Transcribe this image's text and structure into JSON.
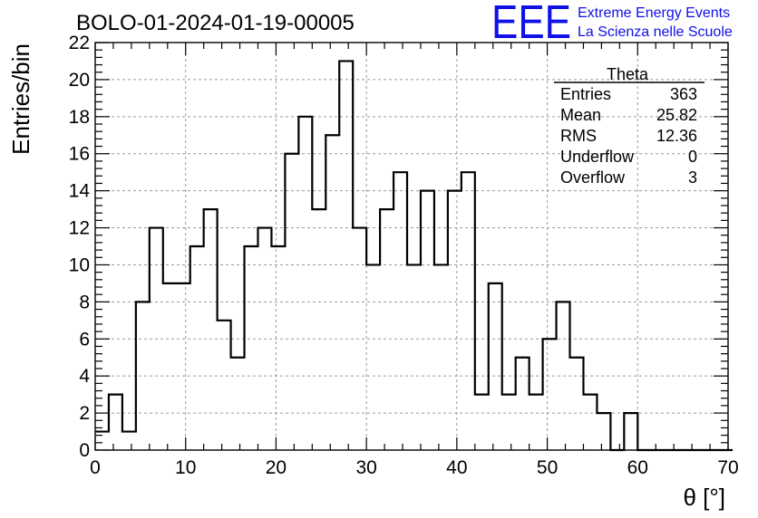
{
  "brand": {
    "logo_text": "EEE",
    "line1": "Extreme Energy Events",
    "line2": "La Scienza nelle Scuole",
    "color": "#1010e8"
  },
  "stats": {
    "title": "Theta",
    "rows": [
      {
        "label": "Entries",
        "value": "363"
      },
      {
        "label": "Mean",
        "value": "25.82"
      },
      {
        "label": "RMS",
        "value": "12.36"
      },
      {
        "label": "Underflow",
        "value": "0"
      },
      {
        "label": "Overflow",
        "value": "3"
      }
    ]
  },
  "chart_data": {
    "type": "bar",
    "style": "step-histogram",
    "title": "BOLO-01-2024-01-19-00005",
    "xlabel": "θ [°]",
    "ylabel": "Entries/bin",
    "xlim": [
      0,
      70
    ],
    "ylim": [
      0,
      22
    ],
    "x_ticks": [
      0,
      10,
      20,
      30,
      40,
      50,
      60,
      70
    ],
    "y_ticks": [
      0,
      2,
      4,
      6,
      8,
      10,
      12,
      14,
      16,
      18,
      20,
      22
    ],
    "bin_width": 1.5,
    "bin_start": 0,
    "values": [
      1,
      3,
      1,
      8,
      12,
      9,
      9,
      11,
      13,
      7,
      5,
      11,
      12,
      11,
      16,
      18,
      13,
      17,
      21,
      12,
      10,
      13,
      15,
      10,
      14,
      10,
      14,
      15,
      3,
      9,
      3,
      5,
      3,
      6,
      8,
      5,
      3,
      2,
      0,
      2,
      0,
      0,
      0,
      0,
      0,
      0,
      0
    ],
    "grid": true,
    "line_color": "#000000"
  }
}
